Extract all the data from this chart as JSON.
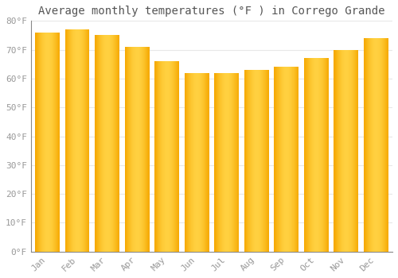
{
  "title": "Average monthly temperatures (°F ) in Corrego Grande",
  "months": [
    "Jan",
    "Feb",
    "Mar",
    "Apr",
    "May",
    "Jun",
    "Jul",
    "Aug",
    "Sep",
    "Oct",
    "Nov",
    "Dec"
  ],
  "values": [
    76,
    77,
    75,
    71,
    66,
    62,
    62,
    63,
    64,
    67,
    70,
    74
  ],
  "bar_color_center": "#FFD040",
  "bar_color_edge": "#F5A800",
  "bar_color_mid": "#FFC020",
  "ylim": [
    0,
    80
  ],
  "yticks": [
    0,
    10,
    20,
    30,
    40,
    50,
    60,
    70,
    80
  ],
  "ytick_labels": [
    "0°F",
    "10°F",
    "20°F",
    "30°F",
    "40°F",
    "50°F",
    "60°F",
    "70°F",
    "80°F"
  ],
  "background_color": "#FFFFFF",
  "title_fontsize": 10,
  "tick_fontsize": 8,
  "grid_color": "#E8E8E8",
  "bar_width": 0.82
}
